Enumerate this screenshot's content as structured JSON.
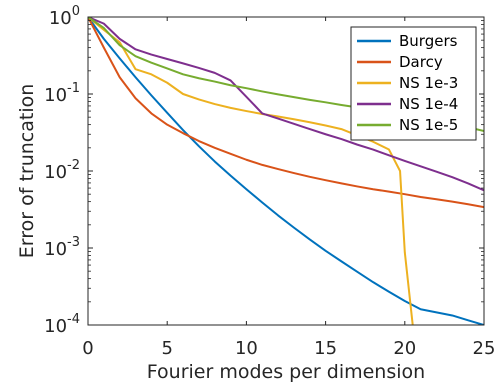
{
  "chart_data": {
    "type": "line",
    "xlabel": "Fourier modes per dimension",
    "ylabel": "Error of truncation",
    "xlim": [
      0,
      25
    ],
    "ylim": [
      0.0001,
      1
    ],
    "yscale": "log",
    "grid": false,
    "legend_position": "top-right",
    "x_ticks": [
      0,
      5,
      10,
      15,
      20,
      25
    ],
    "y_ticks": [
      {
        "value": 0.0001,
        "base": "10",
        "exp": "-4"
      },
      {
        "value": 0.001,
        "base": "10",
        "exp": "-3"
      },
      {
        "value": 0.01,
        "base": "10",
        "exp": "-2"
      },
      {
        "value": 0.1,
        "base": "10",
        "exp": "-1"
      },
      {
        "value": 1,
        "base": "10",
        "exp": "0"
      }
    ],
    "series": [
      {
        "name": "Burgers",
        "color": "#0072BD",
        "points": [
          [
            0,
            1
          ],
          [
            1,
            0.52
          ],
          [
            2,
            0.29
          ],
          [
            3,
            0.165
          ],
          [
            4,
            0.096
          ],
          [
            5,
            0.057
          ],
          [
            6,
            0.034
          ],
          [
            7,
            0.021
          ],
          [
            8,
            0.0133
          ],
          [
            9,
            0.0087
          ],
          [
            10,
            0.0058
          ],
          [
            11,
            0.0039
          ],
          [
            12,
            0.00265
          ],
          [
            13,
            0.00184
          ],
          [
            14,
            0.00129
          ],
          [
            15,
            0.00092
          ],
          [
            16,
            0.00067
          ],
          [
            17,
            0.00049
          ],
          [
            18,
            0.00036
          ],
          [
            19,
            0.00027
          ],
          [
            20,
            0.000205
          ],
          [
            21,
            0.00016
          ],
          [
            22,
            0.000146
          ],
          [
            23,
            0.000133
          ],
          [
            24,
            0.000115
          ],
          [
            25,
            0.0001
          ]
        ]
      },
      {
        "name": "Darcy",
        "color": "#D95319",
        "points": [
          [
            0,
            1
          ],
          [
            1,
            0.4
          ],
          [
            2,
            0.165
          ],
          [
            3,
            0.088
          ],
          [
            4,
            0.056
          ],
          [
            5,
            0.04
          ],
          [
            6,
            0.031
          ],
          [
            7,
            0.0245
          ],
          [
            8,
            0.02
          ],
          [
            9,
            0.0167
          ],
          [
            10,
            0.014
          ],
          [
            11,
            0.012
          ],
          [
            12,
            0.0106
          ],
          [
            13,
            0.0094
          ],
          [
            14,
            0.0084
          ],
          [
            15,
            0.0076
          ],
          [
            16,
            0.0069
          ],
          [
            17,
            0.0063
          ],
          [
            18,
            0.0058
          ],
          [
            19,
            0.0054
          ],
          [
            20,
            0.005
          ],
          [
            21,
            0.0046
          ],
          [
            22,
            0.0043
          ],
          [
            23,
            0.004
          ],
          [
            24,
            0.0037
          ],
          [
            25,
            0.0034
          ]
        ]
      },
      {
        "name": "NS 1e-3",
        "color": "#EDB120",
        "points": [
          [
            0,
            1
          ],
          [
            1,
            0.68
          ],
          [
            2,
            0.47
          ],
          [
            3,
            0.21
          ],
          [
            4,
            0.18
          ],
          [
            5,
            0.14
          ],
          [
            6,
            0.1
          ],
          [
            7,
            0.085
          ],
          [
            8,
            0.074
          ],
          [
            9,
            0.066
          ],
          [
            10,
            0.06
          ],
          [
            11,
            0.055
          ],
          [
            12,
            0.051
          ],
          [
            13,
            0.047
          ],
          [
            14,
            0.043
          ],
          [
            15,
            0.039
          ],
          [
            16,
            0.035
          ],
          [
            17,
            0.029
          ],
          [
            18,
            0.024
          ],
          [
            19,
            0.019
          ],
          [
            19.7,
            0.01
          ],
          [
            20,
            0.00088
          ],
          [
            20.5,
            0.0001
          ]
        ]
      },
      {
        "name": "NS 1e-4",
        "color": "#7E2F8E",
        "points": [
          [
            0,
            1
          ],
          [
            1,
            0.82
          ],
          [
            2,
            0.52
          ],
          [
            3,
            0.38
          ],
          [
            4,
            0.325
          ],
          [
            5,
            0.285
          ],
          [
            6,
            0.25
          ],
          [
            7,
            0.218
          ],
          [
            8,
            0.188
          ],
          [
            9,
            0.15
          ],
          [
            10,
            0.092
          ],
          [
            11,
            0.056
          ],
          [
            12,
            0.048
          ],
          [
            13,
            0.041
          ],
          [
            14,
            0.035
          ],
          [
            15,
            0.03
          ],
          [
            16,
            0.026
          ],
          [
            17,
            0.022
          ],
          [
            18,
            0.019
          ],
          [
            19,
            0.016
          ],
          [
            20,
            0.0135
          ],
          [
            21,
            0.0115
          ],
          [
            22,
            0.0098
          ],
          [
            23,
            0.0083
          ],
          [
            24,
            0.0069
          ],
          [
            25,
            0.0056
          ]
        ]
      },
      {
        "name": "NS 1e-5",
        "color": "#77AC30",
        "points": [
          [
            0,
            1
          ],
          [
            1,
            0.72
          ],
          [
            2,
            0.43
          ],
          [
            3,
            0.31
          ],
          [
            4,
            0.255
          ],
          [
            5,
            0.215
          ],
          [
            6,
            0.18
          ],
          [
            7,
            0.16
          ],
          [
            8,
            0.145
          ],
          [
            9,
            0.13
          ],
          [
            10,
            0.119
          ],
          [
            11,
            0.108
          ],
          [
            12,
            0.099
          ],
          [
            13,
            0.091
          ],
          [
            14,
            0.084
          ],
          [
            15,
            0.078
          ],
          [
            16,
            0.072
          ],
          [
            17,
            0.067
          ],
          [
            18,
            0.062
          ],
          [
            19,
            0.058
          ],
          [
            20,
            0.054
          ],
          [
            21,
            0.05
          ],
          [
            22,
            0.046
          ],
          [
            23,
            0.041
          ],
          [
            24,
            0.037
          ],
          [
            25,
            0.033
          ]
        ]
      }
    ]
  }
}
